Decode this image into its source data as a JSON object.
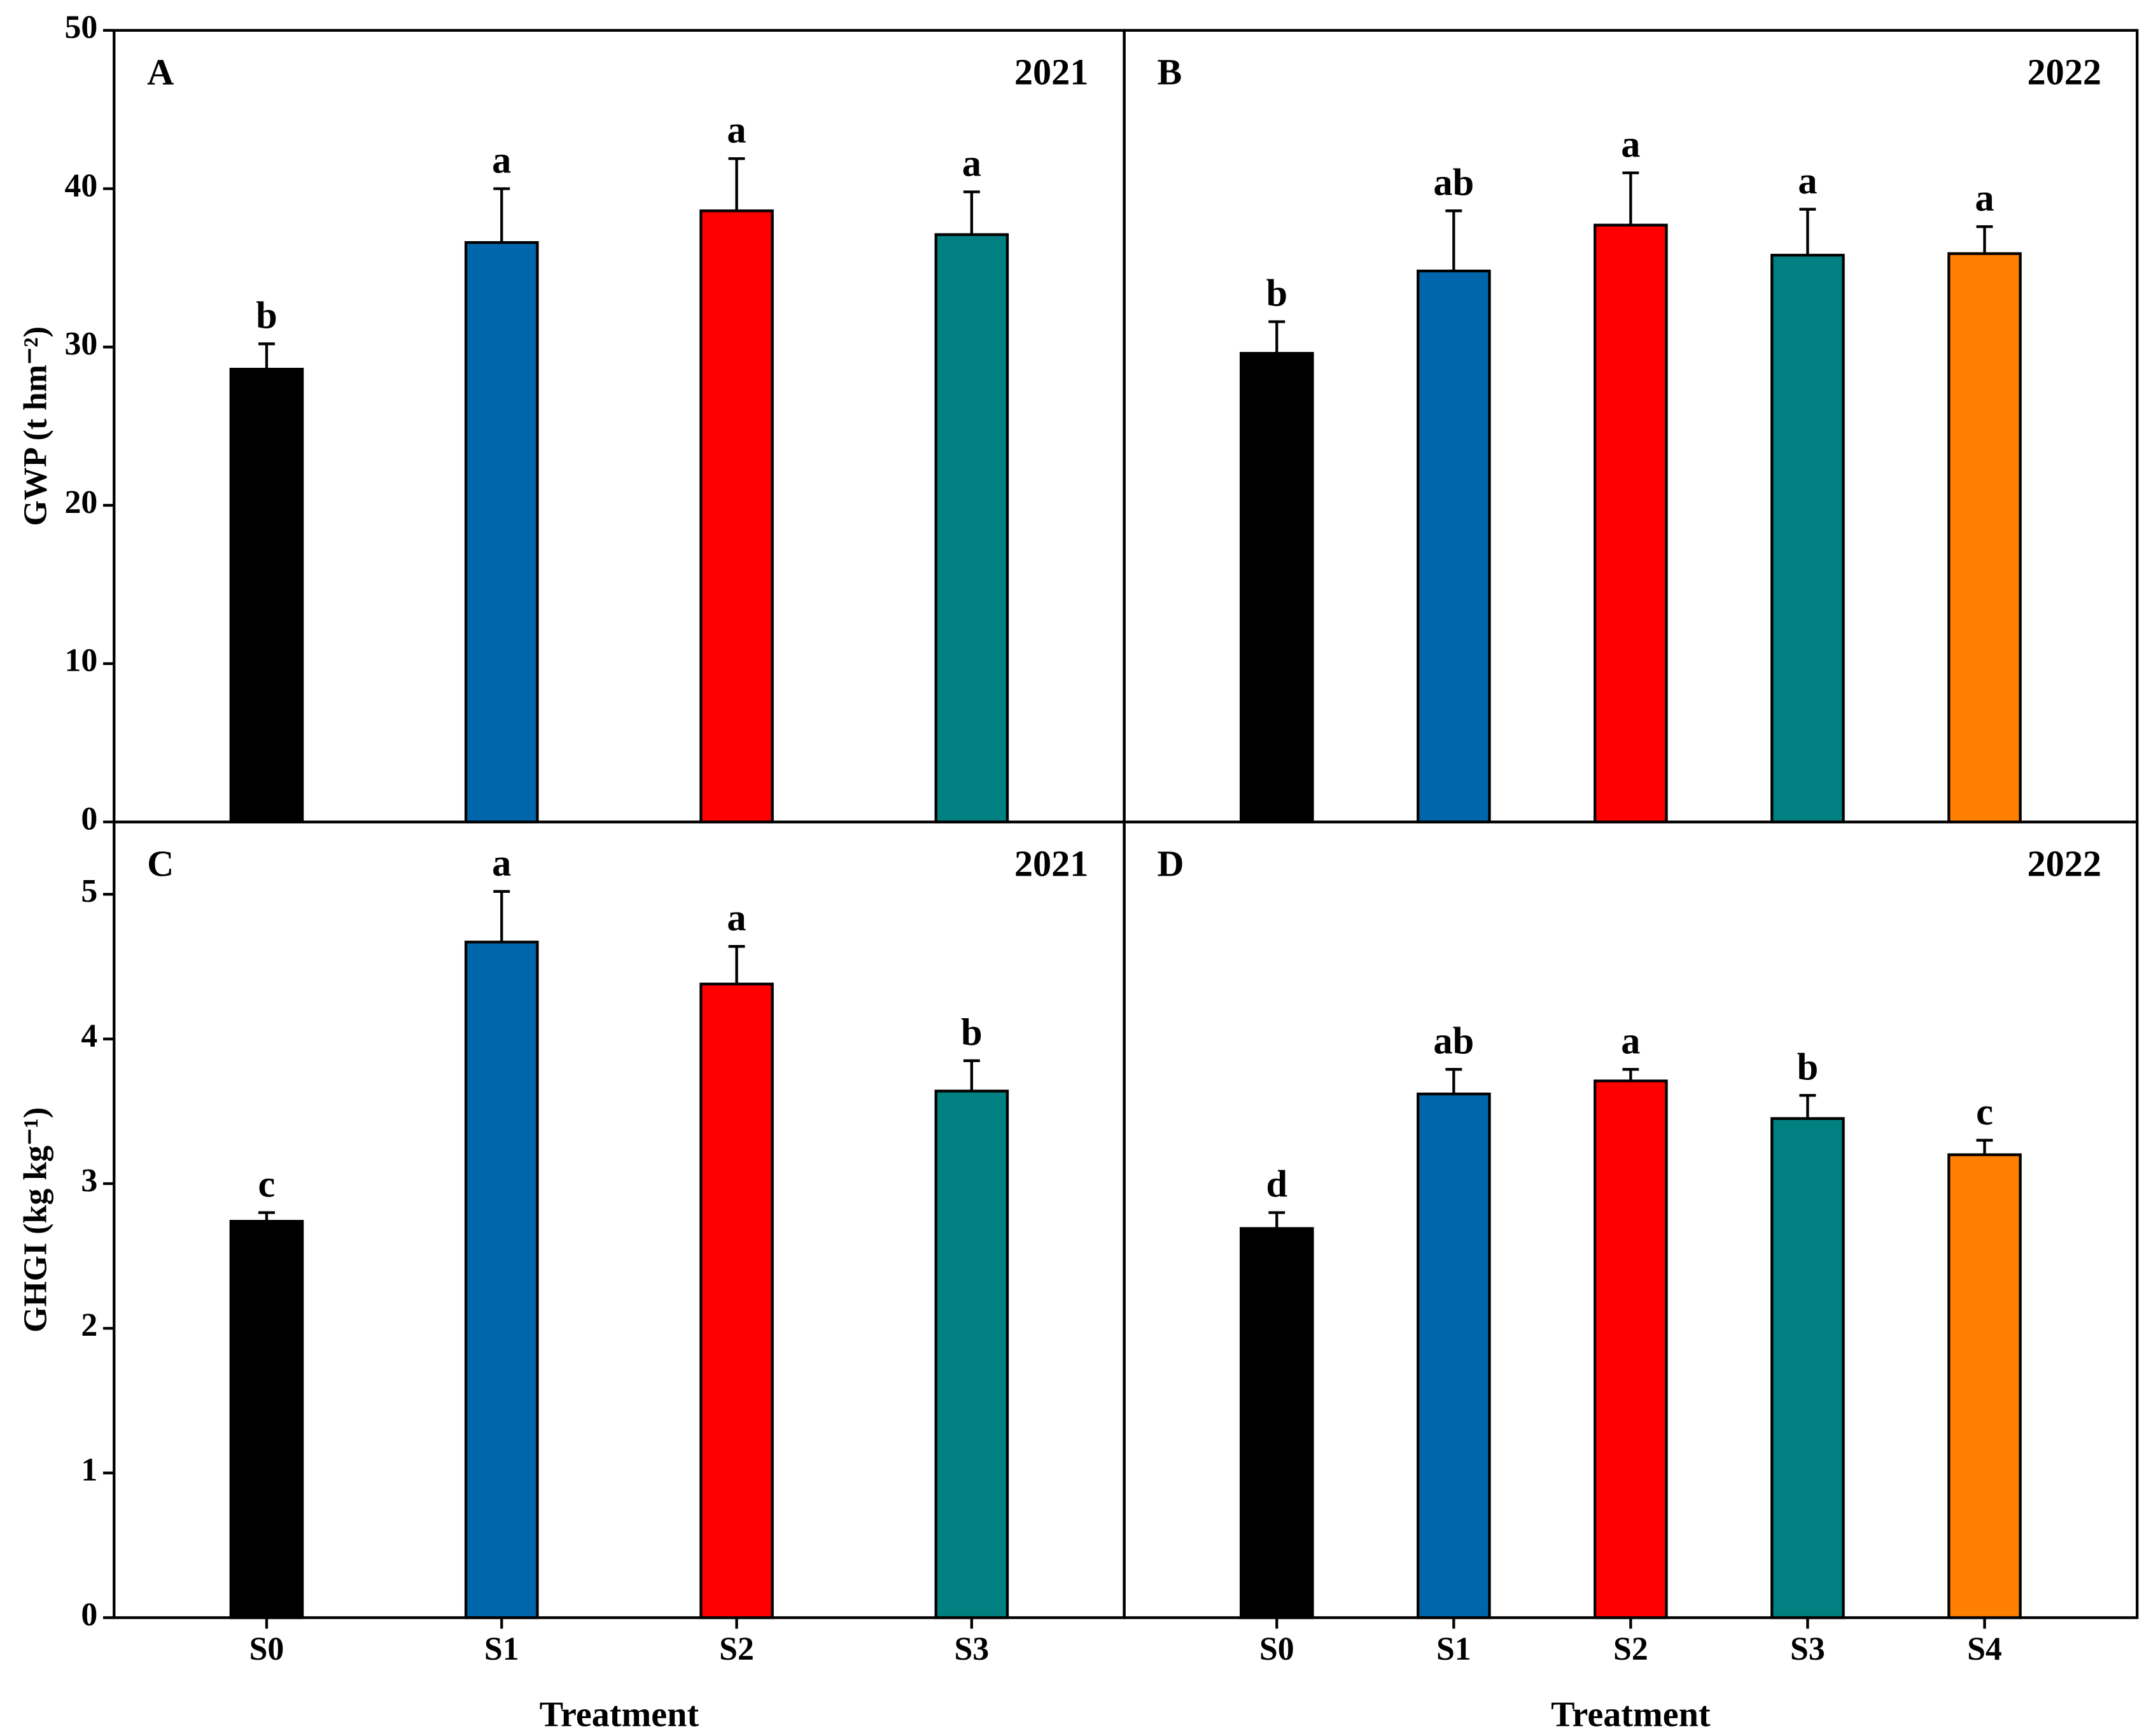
{
  "chart_data": [
    {
      "type": "bar",
      "panel": "A",
      "year": "2021",
      "ylabel": "GWP (t hm⁻²)",
      "values": [
        28.6,
        36.6,
        38.6,
        37.1
      ],
      "errors": [
        1.6,
        3.4,
        3.3,
        2.7
      ],
      "annotations": [
        "b",
        "a",
        "a",
        "a"
      ],
      "colors": [
        "#000000",
        "#0066ac",
        "#ff0000",
        "#008080"
      ],
      "ylim": [
        0,
        50
      ],
      "yticks": [
        0,
        10,
        20,
        30,
        40,
        50
      ]
    },
    {
      "type": "bar",
      "panel": "B",
      "year": "2022",
      "values": [
        29.6,
        34.8,
        37.7,
        35.8,
        35.9
      ],
      "errors": [
        2.0,
        3.8,
        3.3,
        2.9,
        1.7
      ],
      "annotations": [
        "b",
        "ab",
        "a",
        "a",
        "a"
      ],
      "colors": [
        "#000000",
        "#0066ac",
        "#ff0000",
        "#008080",
        "#ff8000"
      ],
      "ylim": [
        0,
        50
      ]
    },
    {
      "type": "bar",
      "panel": "C",
      "year": "2021",
      "ylabel": "GHGI (kg kg⁻¹)",
      "xlabel": "Treatment",
      "categories": [
        "S0",
        "S1",
        "S2",
        "S3"
      ],
      "values": [
        2.74,
        4.67,
        4.38,
        3.64
      ],
      "errors": [
        0.06,
        0.35,
        0.26,
        0.21
      ],
      "annotations": [
        "c",
        "a",
        "a",
        "b"
      ],
      "colors": [
        "#000000",
        "#0066ac",
        "#ff0000",
        "#008080"
      ],
      "ylim": [
        0,
        5.5
      ],
      "yticks": [
        0,
        1,
        2,
        3,
        4,
        5
      ]
    },
    {
      "type": "bar",
      "panel": "D",
      "year": "2022",
      "xlabel": "Treatment",
      "categories": [
        "S0",
        "S1",
        "S2",
        "S3",
        "S4"
      ],
      "values": [
        2.69,
        3.62,
        3.71,
        3.45,
        3.2
      ],
      "errors": [
        0.11,
        0.17,
        0.08,
        0.16,
        0.1
      ],
      "annotations": [
        "d",
        "ab",
        "a",
        "b",
        "c"
      ],
      "colors": [
        "#000000",
        "#0066ac",
        "#ff0000",
        "#008080",
        "#ff8000"
      ],
      "ylim": [
        0,
        5.5
      ]
    }
  ]
}
